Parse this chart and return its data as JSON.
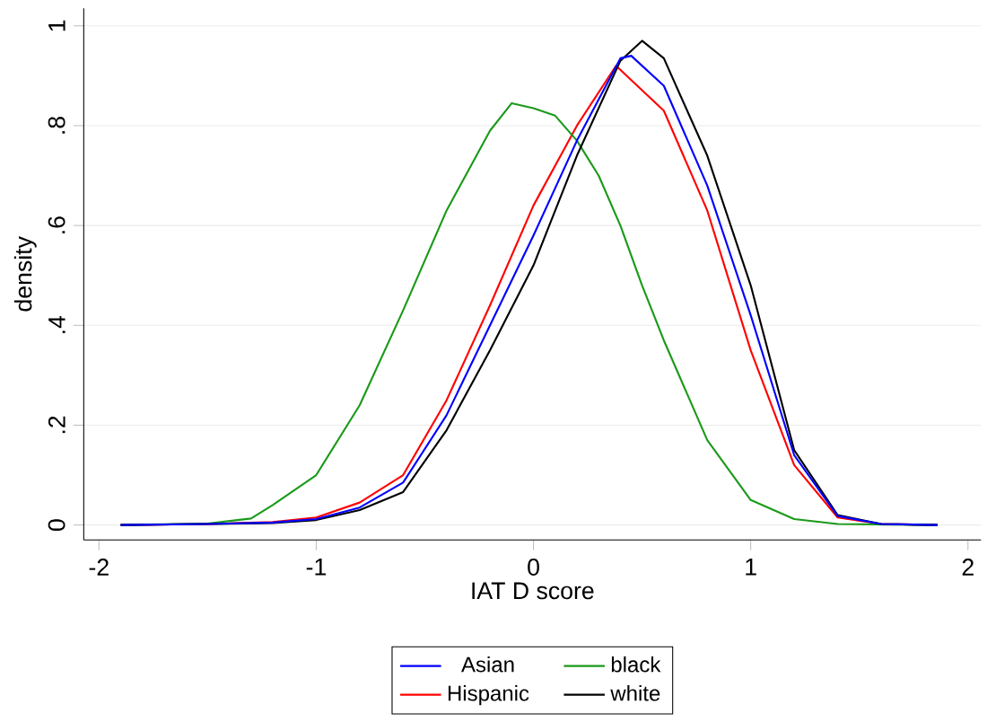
{
  "chart_data": {
    "type": "line",
    "xlabel": "IAT D score",
    "ylabel": "density",
    "xlim": [
      -2.07,
      2.06
    ],
    "ylim": [
      -0.03,
      1.035
    ],
    "xticks": [
      -2,
      -1,
      0,
      1,
      2
    ],
    "yticks": [
      {
        "value": 0,
        "label": "0"
      },
      {
        "value": 0.2,
        "label": ".2"
      },
      {
        "value": 0.4,
        "label": ".4"
      },
      {
        "value": 0.6,
        "label": ".6"
      },
      {
        "value": 0.8,
        "label": ".8"
      },
      {
        "value": 1,
        "label": "1"
      }
    ],
    "grid": "y",
    "legend": "bottom",
    "marker": "none",
    "line_style": "solid",
    "series": [
      {
        "name": "Asian",
        "color": "#0000ff",
        "x": [
          -1.9,
          -1.5,
          -1.2,
          -1,
          -0.8,
          -0.6,
          -0.4,
          -0.2,
          0,
          0.2,
          0.4,
          0.45,
          0.6,
          0.8,
          1,
          1.2,
          1.4,
          1.6,
          1.86
        ],
        "values": [
          0,
          0.002,
          0.005,
          0.012,
          0.035,
          0.085,
          0.22,
          0.4,
          0.58,
          0.77,
          0.935,
          0.94,
          0.88,
          0.68,
          0.42,
          0.14,
          0.018,
          0.002,
          0
        ]
      },
      {
        "name": "Hispanic",
        "color": "#ff0000",
        "x": [
          -1.9,
          -1.5,
          -1.2,
          -1,
          -0.8,
          -0.6,
          -0.4,
          -0.2,
          0,
          0.2,
          0.38,
          0.6,
          0.8,
          1,
          1.2,
          1.4,
          1.6,
          1.86
        ],
        "values": [
          0,
          0.002,
          0.006,
          0.015,
          0.045,
          0.1,
          0.25,
          0.44,
          0.64,
          0.8,
          0.92,
          0.83,
          0.63,
          0.35,
          0.12,
          0.015,
          0.002,
          0
        ]
      },
      {
        "name": "black",
        "color": "#1a9a1a",
        "x": [
          -1.9,
          -1.5,
          -1.3,
          -1.2,
          -1,
          -0.8,
          -0.6,
          -0.4,
          -0.3,
          -0.2,
          -0.1,
          0,
          0.1,
          0.2,
          0.3,
          0.4,
          0.5,
          0.6,
          0.8,
          1,
          1.2,
          1.4,
          1.86
        ],
        "values": [
          0,
          0.003,
          0.013,
          0.04,
          0.1,
          0.24,
          0.43,
          0.63,
          0.71,
          0.79,
          0.845,
          0.835,
          0.82,
          0.77,
          0.7,
          0.6,
          0.48,
          0.37,
          0.17,
          0.05,
          0.012,
          0.002,
          0
        ]
      },
      {
        "name": "white",
        "color": "#000000",
        "x": [
          -1.9,
          -1.5,
          -1.2,
          -1,
          -0.8,
          -0.6,
          -0.4,
          -0.2,
          0,
          0.2,
          0.4,
          0.5,
          0.6,
          0.8,
          1,
          1.2,
          1.4,
          1.6,
          1.86
        ],
        "values": [
          0,
          0.002,
          0.004,
          0.01,
          0.03,
          0.066,
          0.19,
          0.35,
          0.52,
          0.74,
          0.93,
          0.97,
          0.935,
          0.74,
          0.48,
          0.15,
          0.02,
          0.002,
          0
        ]
      }
    ]
  }
}
